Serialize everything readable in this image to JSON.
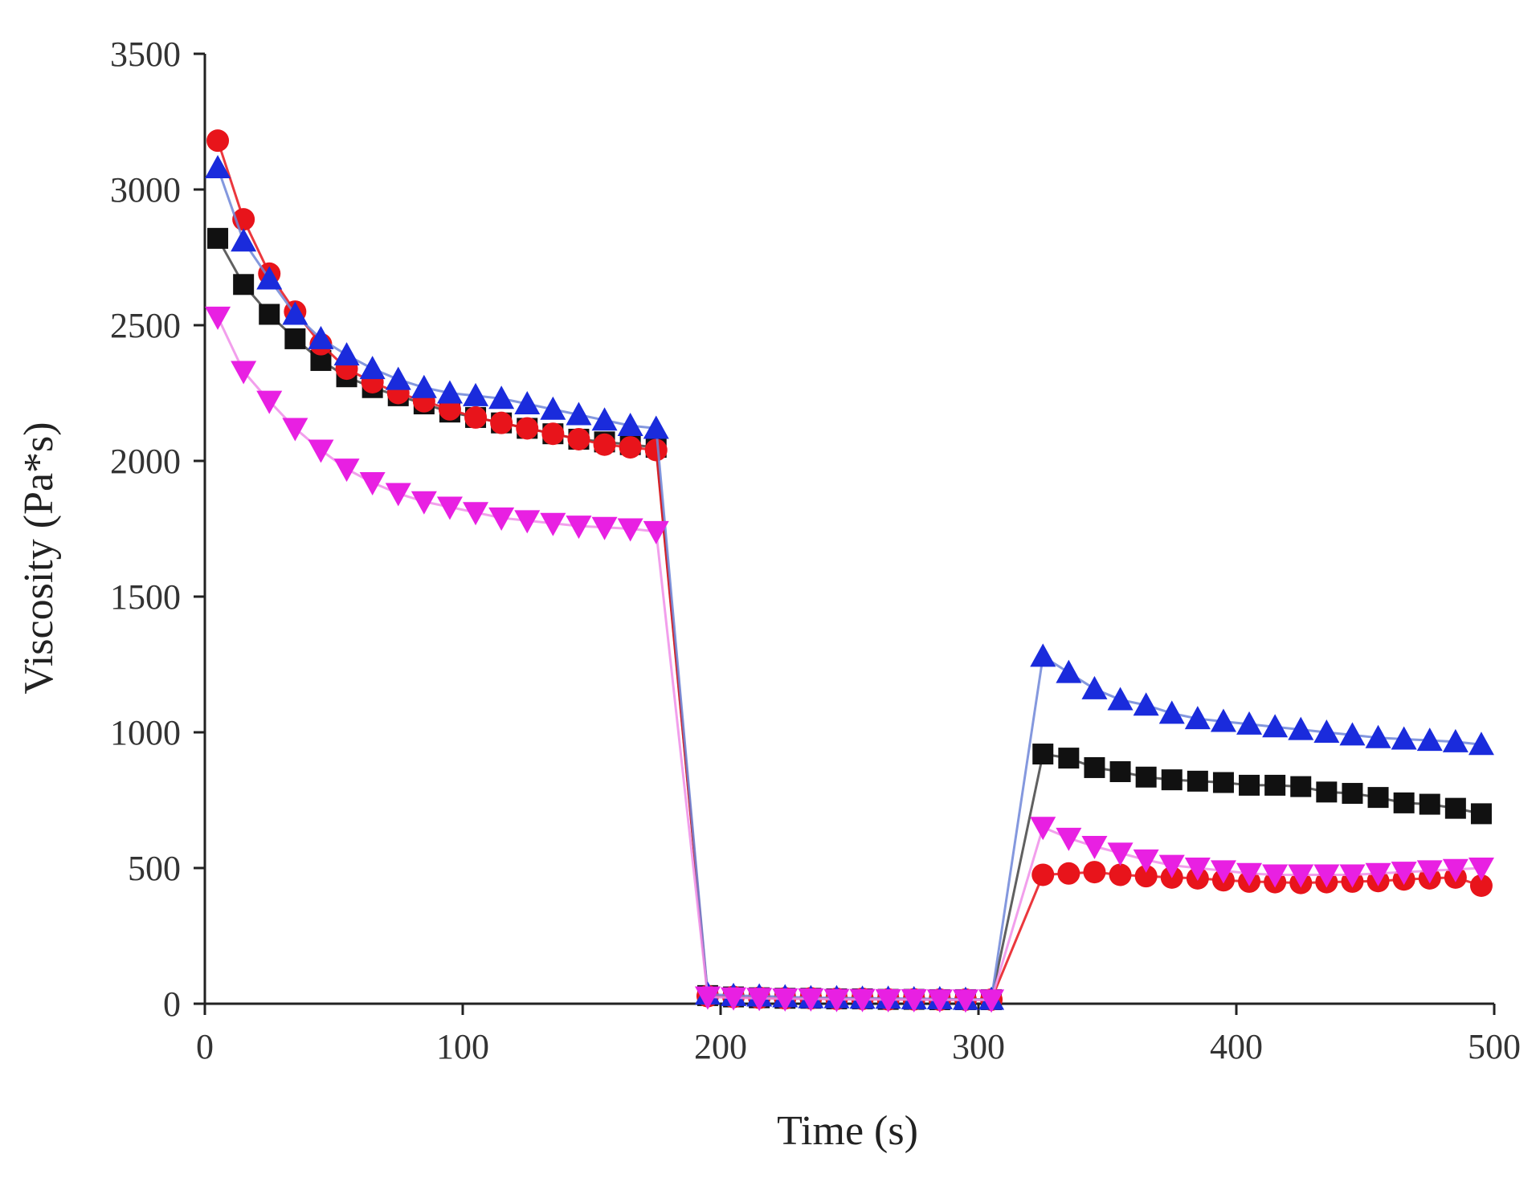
{
  "chart_data": {
    "type": "scatter",
    "xlabel": "Time (s)",
    "ylabel": "Viscosity (Pa*s)",
    "xlim": [
      0,
      500
    ],
    "ylim": [
      0,
      3500
    ],
    "x_ticks": [
      0,
      100,
      200,
      300,
      400,
      500
    ],
    "y_ticks": [
      0,
      500,
      1000,
      1500,
      2000,
      2500,
      3000,
      3500
    ],
    "grid": false,
    "legend": "none",
    "series": [
      {
        "marker": "square",
        "color": "#111111",
        "line_color": "#444444",
        "segments": [
          {
            "x": [
              5,
              15,
              25,
              35,
              45,
              55,
              65,
              75,
              85,
              95,
              105,
              115,
              125,
              135,
              145,
              155,
              165,
              175
            ],
            "y": [
              2820,
              2650,
              2540,
              2450,
              2370,
              2310,
              2270,
              2240,
              2210,
              2180,
              2160,
              2140,
              2120,
              2100,
              2080,
              2070,
              2060,
              2050
            ]
          },
          {
            "x": [
              195,
              205,
              215,
              225,
              235,
              245,
              255,
              265,
              275,
              285,
              295,
              305
            ],
            "y": [
              30,
              25,
              22,
              20,
              20,
              18,
              18,
              16,
              16,
              15,
              15,
              15
            ]
          },
          {
            "x": [
              325,
              335,
              345,
              355,
              365,
              375,
              385,
              395,
              405,
              415,
              425,
              435,
              445,
              455,
              465,
              475,
              485,
              495
            ],
            "y": [
              920,
              905,
              870,
              855,
              835,
              825,
              820,
              815,
              805,
              805,
              800,
              780,
              775,
              760,
              740,
              735,
              720,
              700
            ]
          }
        ]
      },
      {
        "marker": "circle",
        "color": "#e8141b",
        "line_color": "#e8141b",
        "segments": [
          {
            "x": [
              5,
              15,
              25,
              35,
              45,
              55,
              65,
              75,
              85,
              95,
              105,
              115,
              125,
              135,
              145,
              155,
              165,
              175
            ],
            "y": [
              3180,
              2890,
              2690,
              2550,
              2430,
              2340,
              2290,
              2250,
              2220,
              2190,
              2160,
              2140,
              2120,
              2100,
              2080,
              2060,
              2050,
              2040
            ]
          },
          {
            "x": [
              195,
              205,
              215,
              225,
              235,
              245,
              255,
              265,
              275,
              285,
              295,
              305
            ],
            "y": [
              28,
              25,
              22,
              20,
              20,
              18,
              18,
              16,
              16,
              15,
              15,
              15
            ]
          },
          {
            "x": [
              325,
              335,
              345,
              355,
              365,
              375,
              385,
              395,
              405,
              415,
              425,
              435,
              445,
              455,
              465,
              475,
              485,
              495
            ],
            "y": [
              475,
              480,
              485,
              475,
              470,
              465,
              462,
              455,
              450,
              448,
              445,
              448,
              450,
              452,
              458,
              462,
              465,
              435
            ]
          }
        ]
      },
      {
        "marker": "triangle-up",
        "color": "#1a2bdc",
        "line_color": "#6f86d8",
        "segments": [
          {
            "x": [
              5,
              15,
              25,
              35,
              45,
              55,
              65,
              75,
              85,
              95,
              105,
              115,
              125,
              135,
              145,
              155,
              165,
              175
            ],
            "y": [
              3080,
              2810,
              2670,
              2540,
              2450,
              2390,
              2340,
              2300,
              2270,
              2250,
              2240,
              2230,
              2210,
              2190,
              2170,
              2150,
              2130,
              2120
            ]
          },
          {
            "x": [
              195,
              205,
              215,
              225,
              235,
              245,
              255,
              265,
              275,
              285,
              295,
              305
            ],
            "y": [
              35,
              30,
              28,
              25,
              22,
              22,
              20,
              20,
              18,
              18,
              16,
              16
            ]
          },
          {
            "x": [
              325,
              335,
              345,
              355,
              365,
              375,
              385,
              395,
              405,
              415,
              425,
              435,
              445,
              455,
              465,
              475,
              485,
              495
            ],
            "y": [
              1280,
              1220,
              1160,
              1120,
              1100,
              1070,
              1050,
              1040,
              1030,
              1020,
              1010,
              1000,
              990,
              980,
              975,
              970,
              965,
              955
            ]
          }
        ]
      },
      {
        "marker": "triangle-down",
        "color": "#e820e2",
        "line_color": "#f08ee9",
        "segments": [
          {
            "x": [
              5,
              15,
              25,
              35,
              45,
              55,
              65,
              75,
              85,
              95,
              105,
              115,
              125,
              135,
              145,
              155,
              165,
              175
            ],
            "y": [
              2530,
              2330,
              2220,
              2120,
              2040,
              1970,
              1920,
              1880,
              1850,
              1830,
              1810,
              1790,
              1780,
              1770,
              1760,
              1755,
              1750,
              1740
            ]
          },
          {
            "x": [
              195,
              205,
              215,
              225,
              235,
              245,
              255,
              265,
              275,
              285,
              295,
              305
            ],
            "y": [
              25,
              22,
              20,
              18,
              18,
              16,
              16,
              15,
              15,
              14,
              14,
              14
            ]
          },
          {
            "x": [
              325,
              335,
              345,
              355,
              365,
              375,
              385,
              395,
              405,
              415,
              425,
              435,
              445,
              455,
              465,
              475,
              485,
              495
            ],
            "y": [
              650,
              610,
              580,
              555,
              530,
              510,
              500,
              490,
              480,
              475,
              475,
              475,
              475,
              480,
              485,
              490,
              495,
              500
            ]
          }
        ]
      }
    ]
  }
}
